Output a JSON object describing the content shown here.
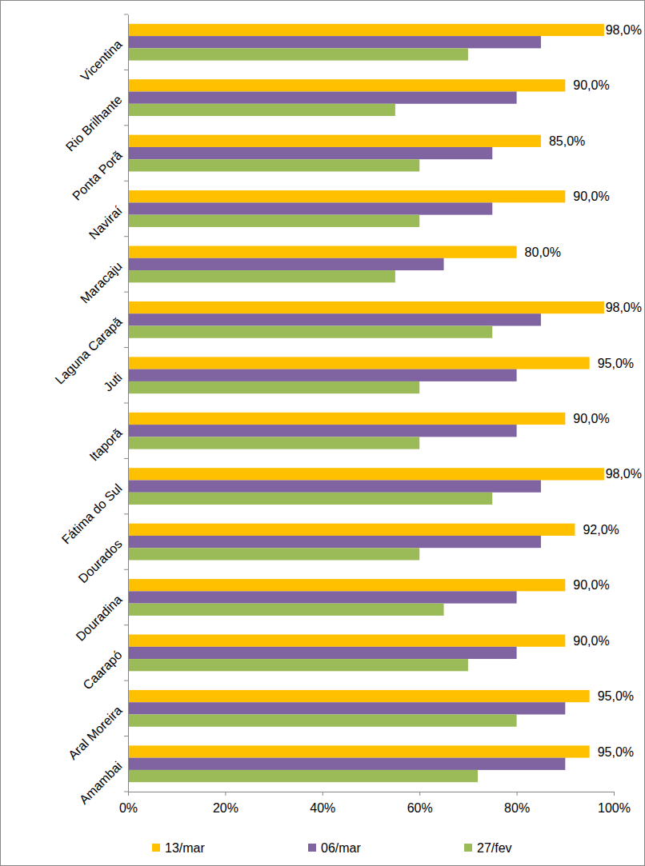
{
  "chart_data": {
    "type": "bar",
    "orientation": "horizontal",
    "categories": [
      "Vicentina",
      "Rio Brilhante",
      "Ponta Porã",
      "Naviraí",
      "Maracaju",
      "Laguna Carapã",
      "Juti",
      "Itaporã",
      "Fátima do Sul",
      "Dourados",
      "Douradina",
      "Caarapó",
      "Aral Moreira",
      "Amambai"
    ],
    "series": [
      {
        "name": "13/mar",
        "color": "#ffc000",
        "values": [
          98,
          90,
          85,
          90,
          80,
          98,
          95,
          90,
          98,
          92,
          90,
          90,
          95,
          95
        ],
        "value_labels": [
          "98,0%",
          "90,0%",
          "85,0%",
          "90,0%",
          "80,0%",
          "98,0%",
          "95,0%",
          "90,0%",
          "98,0%",
          "92,0%",
          "90,0%",
          "90,0%",
          "95,0%",
          "95,0%"
        ]
      },
      {
        "name": "06/mar",
        "color": "#8064a2",
        "values": [
          85,
          80,
          75,
          75,
          65,
          85,
          80,
          80,
          85,
          85,
          80,
          80,
          90,
          90
        ]
      },
      {
        "name": "27/fev",
        "color": "#9bbb59",
        "values": [
          70,
          55,
          60,
          60,
          55,
          75,
          60,
          60,
          75,
          60,
          65,
          70,
          80,
          72
        ]
      }
    ],
    "xlim": [
      0,
      100
    ],
    "xticks": [
      {
        "value": 0,
        "label": "0%"
      },
      {
        "value": 20,
        "label": "20%"
      },
      {
        "value": 40,
        "label": "40%"
      },
      {
        "value": 60,
        "label": "60%"
      },
      {
        "value": 80,
        "label": "80%"
      },
      {
        "value": 100,
        "label": "100%"
      }
    ],
    "grid": false,
    "data_labels": true,
    "legend": "bottom"
  }
}
